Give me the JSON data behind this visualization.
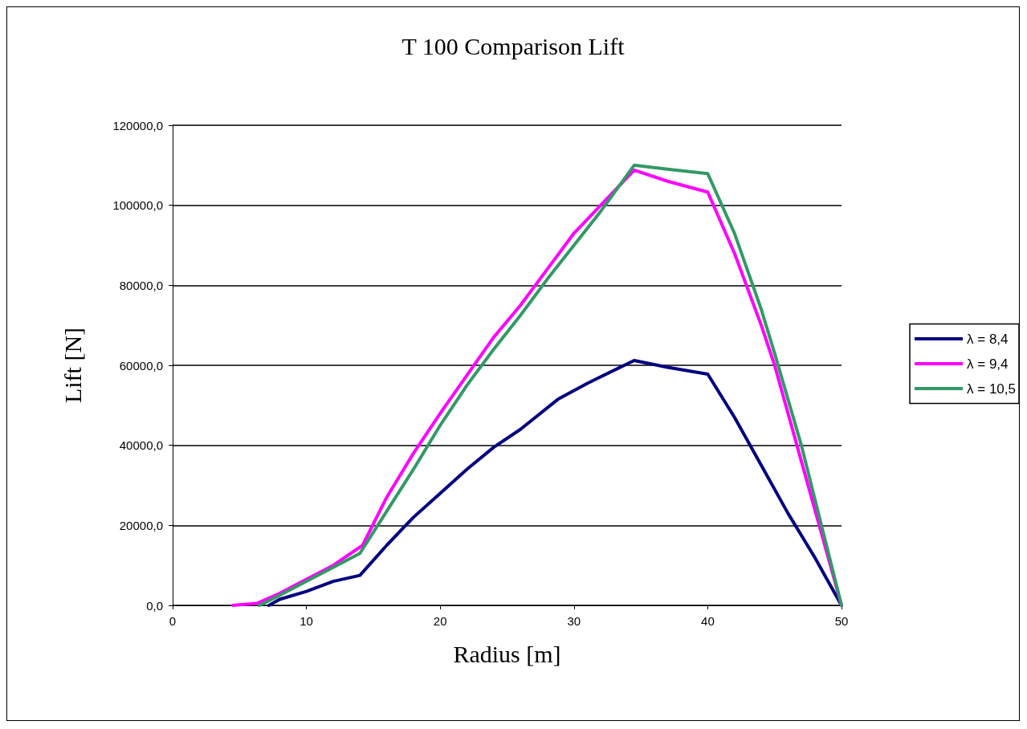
{
  "chart_data": {
    "type": "line",
    "title": "T 100 Comparison Lift",
    "xlabel": "Radius [m]",
    "ylabel": "Lift [N]",
    "xlim": [
      0,
      50
    ],
    "xticks": [
      0,
      10,
      20,
      30,
      40,
      50
    ],
    "ylim": [
      0,
      120000
    ],
    "yticks": [
      {
        "value": 0,
        "label": "0,0"
      },
      {
        "value": 20000,
        "label": "20000,0"
      },
      {
        "value": 40000,
        "label": "40000,0"
      },
      {
        "value": 60000,
        "label": "60000,0"
      },
      {
        "value": 80000,
        "label": "80000,0"
      },
      {
        "value": 100000,
        "label": "100000,0"
      },
      {
        "value": 120000,
        "label": "120000,0"
      }
    ],
    "grid": "y",
    "legend": "right",
    "marker": "none",
    "line_style": "solid",
    "series": [
      {
        "name": "λ = 8,4",
        "color": "#000080",
        "x": [
          7.2,
          8,
          10,
          12,
          14,
          16,
          18,
          20,
          22,
          24,
          26,
          28.8,
          31,
          34.5,
          37,
          40,
          42,
          44,
          46,
          48,
          50
        ],
        "values": [
          0,
          1500,
          3500,
          6000,
          7500,
          15000,
          22000,
          28000,
          34000,
          39500,
          44000,
          51500,
          55500,
          61200,
          59500,
          57800,
          47000,
          35000,
          23000,
          12000,
          0
        ]
      },
      {
        "name": "λ = 9,4",
        "color": "#ff00ff",
        "x": [
          4.5,
          6.3,
          8,
          10,
          12,
          14.2,
          16,
          18,
          20,
          22,
          24,
          26,
          28,
          30,
          32,
          34.5,
          37,
          40,
          42,
          44,
          45,
          47,
          50
        ],
        "values": [
          0,
          500,
          3000,
          6500,
          10000,
          15000,
          27000,
          38000,
          48000,
          57500,
          67000,
          75000,
          84000,
          93000,
          100000,
          108800,
          106000,
          103300,
          88000,
          70000,
          60000,
          36000,
          0
        ]
      },
      {
        "name": "λ = 10,5",
        "color": "#339966",
        "x": [
          6.5,
          8,
          10,
          12,
          14,
          16,
          18,
          20,
          22,
          24,
          26,
          28,
          30,
          32,
          34.5,
          37,
          40,
          42,
          44,
          45,
          47,
          50
        ],
        "values": [
          0,
          2500,
          6000,
          9500,
          13000,
          23500,
          34000,
          45000,
          55000,
          64000,
          72500,
          81500,
          90000,
          98500,
          110000,
          109000,
          107900,
          93000,
          74000,
          63000,
          40000,
          0
        ]
      }
    ]
  }
}
